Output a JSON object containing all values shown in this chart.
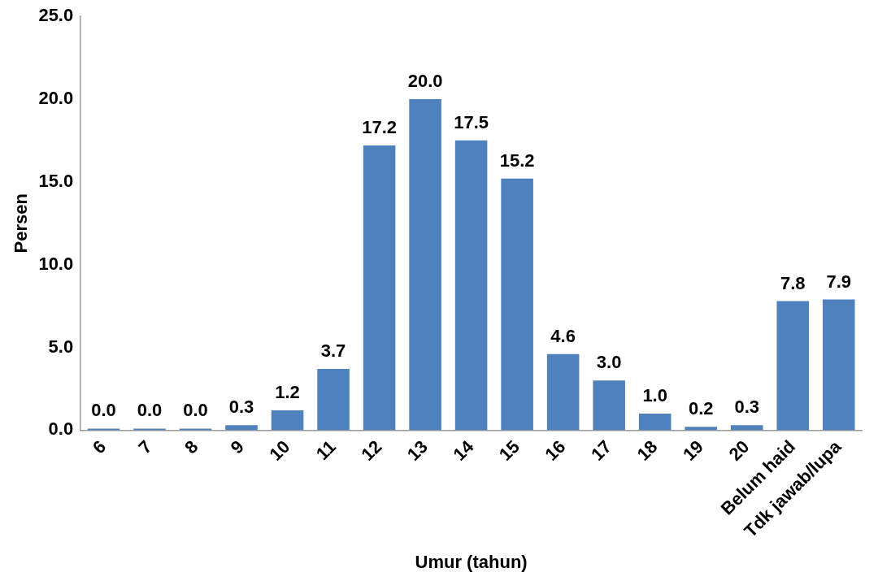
{
  "chart_data": {
    "type": "bar",
    "xlabel": "Umur (tahun)",
    "ylabel": "Persen",
    "categories": [
      "6",
      "7",
      "8",
      "9",
      "10",
      "11",
      "12",
      "13",
      "14",
      "15",
      "16",
      "17",
      "18",
      "19",
      "20",
      "Belum haid",
      "Tdk jawab/lupa"
    ],
    "values": [
      0.0,
      0.0,
      0.0,
      0.3,
      1.2,
      3.7,
      17.2,
      20.0,
      17.5,
      15.2,
      4.6,
      3.0,
      1.0,
      0.2,
      0.3,
      7.8,
      7.9
    ],
    "value_labels": [
      "0.0",
      "0.0",
      "0.0",
      "0.3",
      "1.2",
      "3.7",
      "17.2",
      "20.0",
      "17.5",
      "15.2",
      "4.6",
      "3.0",
      "1.0",
      "0.2",
      "0.3",
      "7.8",
      "7.9"
    ],
    "color": "#4f81bd",
    "ylim": [
      0,
      25
    ],
    "yticks": [
      {
        "value": 0,
        "label": "0.0"
      },
      {
        "value": 5,
        "label": "5.0"
      },
      {
        "value": 10,
        "label": "10.0"
      },
      {
        "value": 15,
        "label": "15.0"
      },
      {
        "value": 20,
        "label": "20.0"
      },
      {
        "value": 25,
        "label": "25.0"
      }
    ],
    "grid": false,
    "legend": false
  }
}
